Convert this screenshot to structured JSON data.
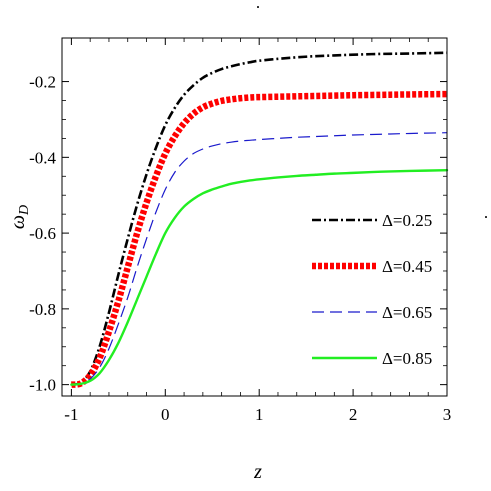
{
  "chart_data": {
    "type": "line",
    "title": "",
    "xlabel": "z",
    "ylabel": "ω_D",
    "ylabel_main": "ω",
    "ylabel_sub": "D",
    "xlim": [
      -1.1,
      3.0
    ],
    "ylim": [
      -1.03,
      -0.085
    ],
    "xticks": [
      -1,
      0,
      1,
      2,
      3
    ],
    "xtick_labels": [
      "-1",
      "0",
      "1",
      "2",
      "3"
    ],
    "yticks": [
      -1.0,
      -0.8,
      -0.6,
      -0.4,
      -0.2
    ],
    "ytick_labels": [
      "-1.0",
      "-0.8",
      "-0.6",
      "-0.4",
      "-0.2"
    ],
    "grid": false,
    "legend_position": "right",
    "series": [
      {
        "name": "Δ=0.25",
        "color": "#000000",
        "style": "dash-dot",
        "x": [
          -1.0,
          -0.9,
          -0.8,
          -0.7,
          -0.6,
          -0.5,
          -0.4,
          -0.3,
          -0.2,
          -0.1,
          0.0,
          0.1,
          0.2,
          0.3,
          0.4,
          0.5,
          0.6,
          0.7,
          0.8,
          0.9,
          1.0,
          1.2,
          1.4,
          1.6,
          1.8,
          2.0,
          2.3,
          2.6,
          3.0
        ],
        "y": [
          -1.0,
          -0.995,
          -0.965,
          -0.9,
          -0.81,
          -0.71,
          -0.615,
          -0.525,
          -0.445,
          -0.375,
          -0.315,
          -0.27,
          -0.235,
          -0.21,
          -0.19,
          -0.177,
          -0.167,
          -0.16,
          -0.154,
          -0.149,
          -0.145,
          -0.14,
          -0.136,
          -0.133,
          -0.131,
          -0.129,
          -0.127,
          -0.126,
          -0.124
        ]
      },
      {
        "name": "Δ=0.45",
        "color": "#ff0000",
        "style": "thick-dotted",
        "x": [
          -1.0,
          -0.9,
          -0.8,
          -0.7,
          -0.6,
          -0.5,
          -0.4,
          -0.3,
          -0.2,
          -0.1,
          0.0,
          0.1,
          0.2,
          0.3,
          0.4,
          0.5,
          0.6,
          0.7,
          0.8,
          0.9,
          1.0,
          1.2,
          1.4,
          1.6,
          1.8,
          2.0,
          2.3,
          2.6,
          3.0
        ],
        "y": [
          -1.0,
          -0.997,
          -0.975,
          -0.93,
          -0.86,
          -0.78,
          -0.69,
          -0.6,
          -0.52,
          -0.45,
          -0.39,
          -0.345,
          -0.31,
          -0.285,
          -0.268,
          -0.258,
          -0.251,
          -0.247,
          -0.244,
          -0.242,
          -0.241,
          -0.24,
          -0.239,
          -0.238,
          -0.237,
          -0.236,
          -0.235,
          -0.234,
          -0.233
        ]
      },
      {
        "name": "Δ=0.65",
        "color": "#1a1acc",
        "style": "dashed",
        "x": [
          -1.0,
          -0.9,
          -0.8,
          -0.7,
          -0.6,
          -0.5,
          -0.4,
          -0.3,
          -0.2,
          -0.1,
          0.0,
          0.1,
          0.2,
          0.3,
          0.4,
          0.5,
          0.6,
          0.7,
          0.8,
          0.9,
          1.0,
          1.2,
          1.4,
          1.6,
          1.8,
          2.0,
          2.3,
          2.6,
          3.0
        ],
        "y": [
          -1.0,
          -0.998,
          -0.985,
          -0.955,
          -0.905,
          -0.84,
          -0.77,
          -0.69,
          -0.615,
          -0.545,
          -0.485,
          -0.44,
          -0.41,
          -0.39,
          -0.378,
          -0.37,
          -0.364,
          -0.36,
          -0.357,
          -0.355,
          -0.353,
          -0.35,
          -0.347,
          -0.345,
          -0.343,
          -0.341,
          -0.339,
          -0.337,
          -0.335
        ]
      },
      {
        "name": "Δ=0.85",
        "color": "#22ee22",
        "style": "solid",
        "x": [
          -1.0,
          -0.9,
          -0.8,
          -0.7,
          -0.6,
          -0.5,
          -0.4,
          -0.3,
          -0.2,
          -0.1,
          0.0,
          0.1,
          0.2,
          0.3,
          0.4,
          0.5,
          0.6,
          0.7,
          0.8,
          0.9,
          1.0,
          1.2,
          1.4,
          1.6,
          1.8,
          2.0,
          2.3,
          2.6,
          3.0
        ],
        "y": [
          -1.0,
          -0.998,
          -0.99,
          -0.97,
          -0.935,
          -0.89,
          -0.835,
          -0.775,
          -0.715,
          -0.655,
          -0.6,
          -0.56,
          -0.53,
          -0.51,
          -0.495,
          -0.485,
          -0.477,
          -0.47,
          -0.465,
          -0.461,
          -0.458,
          -0.453,
          -0.449,
          -0.446,
          -0.443,
          -0.441,
          -0.438,
          -0.436,
          -0.434
        ]
      }
    ]
  },
  "annotations": {
    "stray_mark_top": ".",
    "stray_mark_right": "."
  }
}
